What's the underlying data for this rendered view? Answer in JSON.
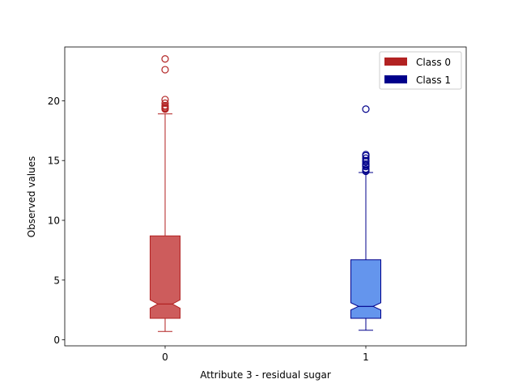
{
  "chart_data": {
    "type": "boxplot",
    "title": "",
    "xlabel": "Attribute 3 - residual sugar",
    "ylabel": "Observed values",
    "categories": [
      "0",
      "1"
    ],
    "ylim": [
      -0.5,
      24.5
    ],
    "yticks": [
      0,
      5,
      10,
      15,
      20
    ],
    "notched": true,
    "grid": false,
    "legend": {
      "placement": "top-right",
      "entries": [
        {
          "label": "Class 0",
          "color": "#b22222"
        },
        {
          "label": "Class 1",
          "color": "#00008b"
        }
      ]
    },
    "series": [
      {
        "category": "0",
        "legend_label": "Class 0",
        "face_color": "#cd5c5c",
        "edge_color": "#b22222",
        "whisker_low": 0.7,
        "q1": 1.8,
        "median": 3.0,
        "q3": 8.7,
        "whisker_high": 18.9,
        "notch_low": 2.65,
        "notch_high": 3.35,
        "outliers": [
          19.3,
          19.35,
          19.4,
          19.5,
          19.6,
          19.8,
          20.1,
          22.6,
          23.5
        ]
      },
      {
        "category": "1",
        "legend_label": "Class 1",
        "face_color": "#6495ed",
        "edge_color": "#00008b",
        "whisker_low": 0.8,
        "q1": 1.8,
        "median": 2.8,
        "q3": 6.7,
        "whisker_high": 14.0,
        "notch_low": 2.5,
        "notch_high": 3.1,
        "outliers": [
          14.1,
          14.2,
          14.3,
          14.5,
          14.6,
          14.7,
          14.9,
          15.0,
          15.2,
          15.4,
          15.5,
          19.3
        ]
      }
    ]
  }
}
